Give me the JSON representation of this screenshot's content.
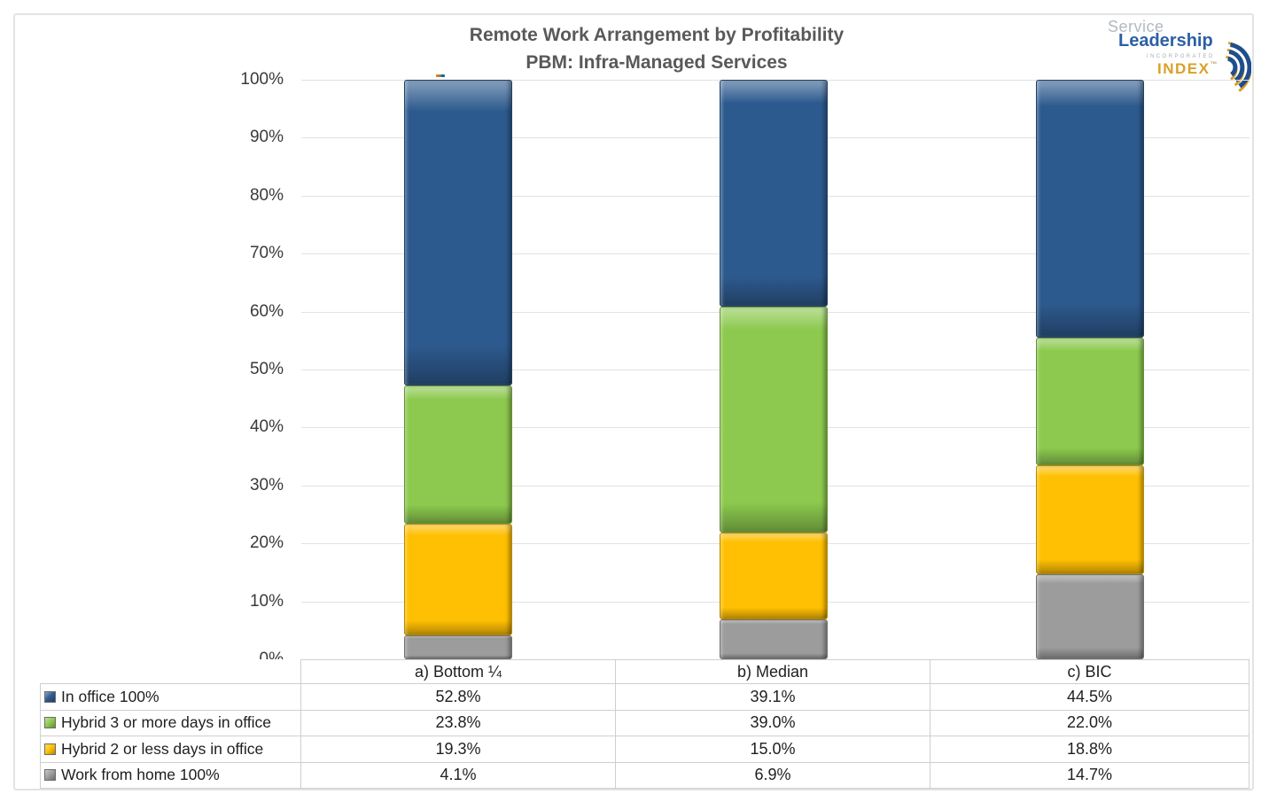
{
  "title": {
    "line1": "Remote Work Arrangement by Profitability",
    "line2": "PBM: Infra-Managed Services"
  },
  "logo": {
    "service": "Service",
    "leadership": "Leadership",
    "incorporated": "INCORPORATED",
    "index": "INDEX",
    "tm": "™"
  },
  "chart_data": {
    "type": "bar",
    "stacked": true,
    "title": "Remote Work Arrangement by Profitability — PBM: Infra-Managed Services",
    "categories": [
      "a) Bottom ¼",
      "b) Median",
      "c) BIC"
    ],
    "series": [
      {
        "name": "In office 100%",
        "values": [
          52.8,
          39.1,
          44.5
        ],
        "display": [
          "52.8%",
          "39.1%",
          "44.5%"
        ],
        "color": "#2d5a8e"
      },
      {
        "name": "Hybrid 3 or more days in office",
        "values": [
          23.8,
          39.0,
          22.0
        ],
        "display": [
          "23.8%",
          "39.0%",
          "22.0%"
        ],
        "color": "#8cc94e"
      },
      {
        "name": "Hybrid 2 or less days in office",
        "values": [
          19.3,
          15.0,
          18.8
        ],
        "display": [
          "19.3%",
          "15.0%",
          "18.8%"
        ],
        "color": "#ffc003"
      },
      {
        "name": "Work from home 100%",
        "values": [
          4.1,
          6.9,
          14.7
        ],
        "display": [
          "4.1%",
          "6.9%",
          "14.7%"
        ],
        "color": "#9c9c9c"
      }
    ],
    "stack_order_top_to_bottom": [
      "In office 100%",
      "Hybrid 3 or more days in office",
      "Hybrid 2 or less days in office",
      "Work from home 100%"
    ],
    "yticks": [
      "0%",
      "10%",
      "20%",
      "30%",
      "40%",
      "50%",
      "60%",
      "70%",
      "80%",
      "90%",
      "100%"
    ],
    "ylim": [
      0,
      100
    ],
    "grid": true,
    "legend_position": "table-left-column"
  }
}
